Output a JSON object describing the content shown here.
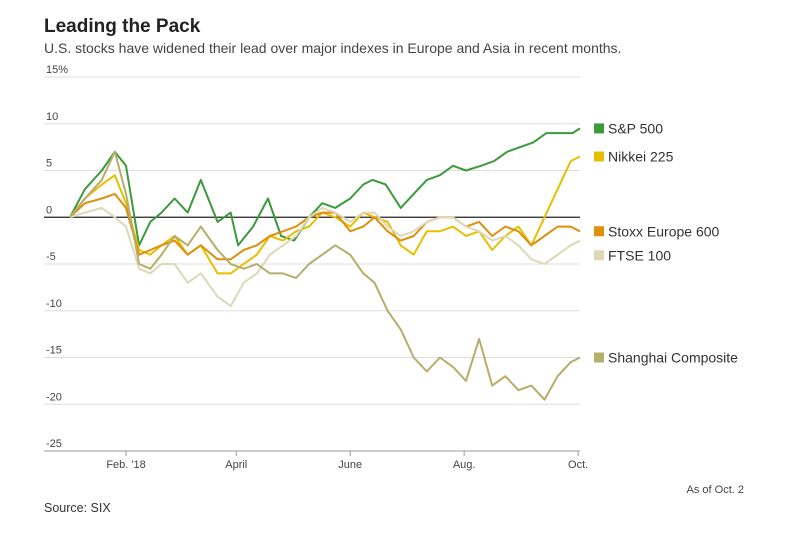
{
  "header": {
    "title": "Leading the Pack",
    "subtitle": "U.S. stocks have widened their lead over major indexes in Europe and Asia in recent months."
  },
  "footer": {
    "source": "Source: SIX",
    "as_of": "As of Oct. 2"
  },
  "chart_data": {
    "type": "line",
    "title": "Leading the Pack",
    "subtitle": "U.S. stocks have widened their lead over major indexes in Europe and Asia in recent months.",
    "xlabel": "",
    "ylabel": "",
    "x_ticks": [
      "Feb. '18",
      "April",
      "June",
      "Aug.",
      "Oct."
    ],
    "x_tick_dates": [
      "2018-02-01",
      "2018-04-01",
      "2018-06-01",
      "2018-08-01",
      "2018-10-01"
    ],
    "x_range": [
      "2018-01-02",
      "2018-10-02"
    ],
    "y_ticks": [
      15,
      10,
      5,
      0,
      -5,
      -10,
      -15,
      -20,
      -25
    ],
    "y_tick_labels": [
      "15%",
      "10",
      "5",
      "0",
      "-5",
      "-10",
      "-15",
      "-20",
      "-25"
    ],
    "ylim": [
      -25,
      15
    ],
    "grid": true,
    "legend_position": "right",
    "series": [
      {
        "name": "S&P 500",
        "color": "#3c9a3c",
        "data": [
          [
            "2018-01-02",
            0
          ],
          [
            "2018-01-10",
            3
          ],
          [
            "2018-01-19",
            5
          ],
          [
            "2018-01-26",
            7
          ],
          [
            "2018-02-01",
            5.5
          ],
          [
            "2018-02-08",
            -3
          ],
          [
            "2018-02-14",
            -0.5
          ],
          [
            "2018-02-20",
            0.5
          ],
          [
            "2018-02-27",
            2
          ],
          [
            "2018-03-06",
            0.5
          ],
          [
            "2018-03-13",
            4
          ],
          [
            "2018-03-22",
            -0.5
          ],
          [
            "2018-03-29",
            0.5
          ],
          [
            "2018-04-02",
            -3
          ],
          [
            "2018-04-10",
            -1
          ],
          [
            "2018-04-18",
            2
          ],
          [
            "2018-04-25",
            -2
          ],
          [
            "2018-05-02",
            -2.5
          ],
          [
            "2018-05-10",
            0
          ],
          [
            "2018-05-17",
            1.5
          ],
          [
            "2018-05-24",
            1
          ],
          [
            "2018-06-01",
            2
          ],
          [
            "2018-06-08",
            3.5
          ],
          [
            "2018-06-13",
            4
          ],
          [
            "2018-06-20",
            3.5
          ],
          [
            "2018-06-28",
            1
          ],
          [
            "2018-07-05",
            2.5
          ],
          [
            "2018-07-12",
            4
          ],
          [
            "2018-07-19",
            4.5
          ],
          [
            "2018-07-26",
            5.5
          ],
          [
            "2018-08-02",
            5
          ],
          [
            "2018-08-10",
            5.5
          ],
          [
            "2018-08-17",
            6
          ],
          [
            "2018-08-24",
            7
          ],
          [
            "2018-08-31",
            7.5
          ],
          [
            "2018-09-07",
            8
          ],
          [
            "2018-09-14",
            9
          ],
          [
            "2018-09-21",
            9
          ],
          [
            "2018-09-28",
            9
          ],
          [
            "2018-10-02",
            9.5
          ]
        ]
      },
      {
        "name": "Nikkei 225",
        "color": "#e8bf00",
        "data": [
          [
            "2018-01-02",
            0
          ],
          [
            "2018-01-10",
            2
          ],
          [
            "2018-01-19",
            3.5
          ],
          [
            "2018-01-26",
            4.5
          ],
          [
            "2018-02-01",
            1.5
          ],
          [
            "2018-02-08",
            -3.5
          ],
          [
            "2018-02-14",
            -4
          ],
          [
            "2018-02-20",
            -3
          ],
          [
            "2018-02-27",
            -2
          ],
          [
            "2018-03-06",
            -4
          ],
          [
            "2018-03-13",
            -3
          ],
          [
            "2018-03-22",
            -6
          ],
          [
            "2018-03-29",
            -6
          ],
          [
            "2018-04-05",
            -5
          ],
          [
            "2018-04-12",
            -4
          ],
          [
            "2018-04-19",
            -2
          ],
          [
            "2018-04-26",
            -2.5
          ],
          [
            "2018-05-03",
            -1.5
          ],
          [
            "2018-05-10",
            -1
          ],
          [
            "2018-05-17",
            0.5
          ],
          [
            "2018-05-24",
            0
          ],
          [
            "2018-06-01",
            -1
          ],
          [
            "2018-06-08",
            0.5
          ],
          [
            "2018-06-14",
            0
          ],
          [
            "2018-06-21",
            -0.5
          ],
          [
            "2018-06-28",
            -3
          ],
          [
            "2018-07-05",
            -4
          ],
          [
            "2018-07-12",
            -1.5
          ],
          [
            "2018-07-19",
            -1.5
          ],
          [
            "2018-07-26",
            -1
          ],
          [
            "2018-08-02",
            -2
          ],
          [
            "2018-08-09",
            -1.5
          ],
          [
            "2018-08-16",
            -3.5
          ],
          [
            "2018-08-23",
            -2
          ],
          [
            "2018-08-30",
            -1
          ],
          [
            "2018-09-06",
            -3
          ],
          [
            "2018-09-13",
            0
          ],
          [
            "2018-09-20",
            3
          ],
          [
            "2018-09-27",
            6
          ],
          [
            "2018-10-02",
            6.5
          ]
        ]
      },
      {
        "name": "Stoxx Europe 600",
        "color": "#de8f0e",
        "data": [
          [
            "2018-01-02",
            0
          ],
          [
            "2018-01-10",
            1.5
          ],
          [
            "2018-01-19",
            2
          ],
          [
            "2018-01-26",
            2.5
          ],
          [
            "2018-02-01",
            1
          ],
          [
            "2018-02-08",
            -4
          ],
          [
            "2018-02-14",
            -3.5
          ],
          [
            "2018-02-20",
            -3
          ],
          [
            "2018-02-27",
            -2.5
          ],
          [
            "2018-03-06",
            -4
          ],
          [
            "2018-03-13",
            -3
          ],
          [
            "2018-03-22",
            -4.5
          ],
          [
            "2018-03-29",
            -4.5
          ],
          [
            "2018-04-05",
            -3.5
          ],
          [
            "2018-04-12",
            -3
          ],
          [
            "2018-04-19",
            -2
          ],
          [
            "2018-04-26",
            -1.5
          ],
          [
            "2018-05-03",
            -1
          ],
          [
            "2018-05-10",
            0
          ],
          [
            "2018-05-17",
            0.5
          ],
          [
            "2018-05-24",
            0.5
          ],
          [
            "2018-06-01",
            -1.5
          ],
          [
            "2018-06-08",
            -1
          ],
          [
            "2018-06-14",
            0
          ],
          [
            "2018-06-21",
            -1.5
          ],
          [
            "2018-06-28",
            -2.5
          ],
          [
            "2018-07-05",
            -2
          ],
          [
            "2018-07-12",
            -0.5
          ],
          [
            "2018-07-19",
            0
          ],
          [
            "2018-07-26",
            0
          ],
          [
            "2018-08-02",
            -1
          ],
          [
            "2018-08-09",
            -0.5
          ],
          [
            "2018-08-16",
            -2
          ],
          [
            "2018-08-23",
            -1
          ],
          [
            "2018-08-30",
            -1.5
          ],
          [
            "2018-09-06",
            -3
          ],
          [
            "2018-09-13",
            -2
          ],
          [
            "2018-09-20",
            -1
          ],
          [
            "2018-09-27",
            -1
          ],
          [
            "2018-10-02",
            -1.5
          ]
        ]
      },
      {
        "name": "FTSE 100",
        "color": "#dcd8b8",
        "data": [
          [
            "2018-01-02",
            0
          ],
          [
            "2018-01-10",
            0.5
          ],
          [
            "2018-01-19",
            1
          ],
          [
            "2018-01-26",
            0
          ],
          [
            "2018-02-01",
            -1
          ],
          [
            "2018-02-08",
            -5.5
          ],
          [
            "2018-02-14",
            -6
          ],
          [
            "2018-02-20",
            -5
          ],
          [
            "2018-02-27",
            -5
          ],
          [
            "2018-03-06",
            -7
          ],
          [
            "2018-03-13",
            -6
          ],
          [
            "2018-03-22",
            -8.5
          ],
          [
            "2018-03-29",
            -9.5
          ],
          [
            "2018-04-05",
            -7
          ],
          [
            "2018-04-12",
            -6
          ],
          [
            "2018-04-19",
            -4
          ],
          [
            "2018-04-26",
            -3
          ],
          [
            "2018-05-03",
            -2
          ],
          [
            "2018-05-10",
            0
          ],
          [
            "2018-05-17",
            1
          ],
          [
            "2018-05-24",
            0.5
          ],
          [
            "2018-06-01",
            -0.5
          ],
          [
            "2018-06-08",
            0.5
          ],
          [
            "2018-06-14",
            0.5
          ],
          [
            "2018-06-21",
            -1
          ],
          [
            "2018-06-28",
            -2
          ],
          [
            "2018-07-05",
            -1.5
          ],
          [
            "2018-07-12",
            -0.5
          ],
          [
            "2018-07-19",
            0
          ],
          [
            "2018-07-26",
            0
          ],
          [
            "2018-08-02",
            -1
          ],
          [
            "2018-08-09",
            -1.5
          ],
          [
            "2018-08-16",
            -2.5
          ],
          [
            "2018-08-23",
            -2
          ],
          [
            "2018-08-30",
            -3
          ],
          [
            "2018-09-06",
            -4.5
          ],
          [
            "2018-09-13",
            -5
          ],
          [
            "2018-09-20",
            -4
          ],
          [
            "2018-09-27",
            -3
          ],
          [
            "2018-10-02",
            -2.5
          ]
        ]
      },
      {
        "name": "Shanghai Composite",
        "color": "#b7ad6a",
        "data": [
          [
            "2018-01-02",
            0
          ],
          [
            "2018-01-10",
            2
          ],
          [
            "2018-01-19",
            4
          ],
          [
            "2018-01-26",
            7
          ],
          [
            "2018-02-01",
            2.5
          ],
          [
            "2018-02-08",
            -5
          ],
          [
            "2018-02-14",
            -5.5
          ],
          [
            "2018-02-20",
            -4
          ],
          [
            "2018-02-27",
            -2
          ],
          [
            "2018-03-06",
            -3
          ],
          [
            "2018-03-13",
            -1
          ],
          [
            "2018-03-22",
            -3.5
          ],
          [
            "2018-03-29",
            -5
          ],
          [
            "2018-04-05",
            -5.5
          ],
          [
            "2018-04-12",
            -5
          ],
          [
            "2018-04-19",
            -6
          ],
          [
            "2018-04-26",
            -6
          ],
          [
            "2018-05-03",
            -6.5
          ],
          [
            "2018-05-10",
            -5
          ],
          [
            "2018-05-17",
            -4
          ],
          [
            "2018-05-24",
            -3
          ],
          [
            "2018-06-01",
            -4
          ],
          [
            "2018-06-08",
            -6
          ],
          [
            "2018-06-14",
            -7
          ],
          [
            "2018-06-21",
            -10
          ],
          [
            "2018-06-28",
            -12
          ],
          [
            "2018-07-05",
            -15
          ],
          [
            "2018-07-12",
            -16.5
          ],
          [
            "2018-07-19",
            -15
          ],
          [
            "2018-07-26",
            -16
          ],
          [
            "2018-08-02",
            -17.5
          ],
          [
            "2018-08-09",
            -13
          ],
          [
            "2018-08-16",
            -18
          ],
          [
            "2018-08-23",
            -17
          ],
          [
            "2018-08-30",
            -18.5
          ],
          [
            "2018-09-06",
            -18
          ],
          [
            "2018-09-13",
            -19.5
          ],
          [
            "2018-09-20",
            -17
          ],
          [
            "2018-09-27",
            -15.5
          ],
          [
            "2018-10-02",
            -15
          ]
        ]
      }
    ]
  }
}
